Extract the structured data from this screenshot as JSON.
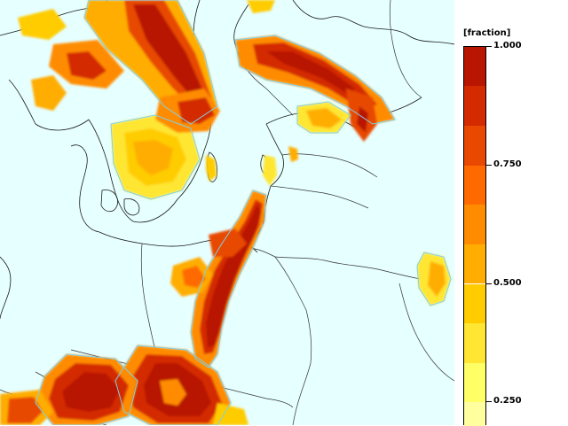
{
  "legend": {
    "title": "[fraction]",
    "ticks": [
      {
        "label": "1.000",
        "value": 1.0
      },
      {
        "label": "0.750",
        "value": 0.75
      },
      {
        "label": "0.500",
        "value": 0.5
      },
      {
        "label": "0.250",
        "value": 0.25
      }
    ],
    "bins": [
      {
        "from": 0.917,
        "to": 1.0,
        "color": "#b81600"
      },
      {
        "from": 0.833,
        "to": 0.917,
        "color": "#d42a00"
      },
      {
        "from": 0.75,
        "to": 0.833,
        "color": "#e84800"
      },
      {
        "from": 0.667,
        "to": 0.75,
        "color": "#ff6a00"
      },
      {
        "from": 0.583,
        "to": 0.667,
        "color": "#ff8c00"
      },
      {
        "from": 0.5,
        "to": 0.583,
        "color": "#ffad00"
      },
      {
        "from": 0.417,
        "to": 0.5,
        "color": "#ffcc00"
      },
      {
        "from": 0.333,
        "to": 0.417,
        "color": "#ffe633"
      },
      {
        "from": 0.25,
        "to": 0.333,
        "color": "#ffff66"
      },
      {
        "from": 0.2,
        "to": 0.25,
        "color": "#ffffa0"
      }
    ],
    "value_min": 0.2,
    "value_max": 1.0
  },
  "map": {
    "background_color": "#e6ffff",
    "outline_color": "#7fd0e8",
    "border_color": "#000000"
  }
}
